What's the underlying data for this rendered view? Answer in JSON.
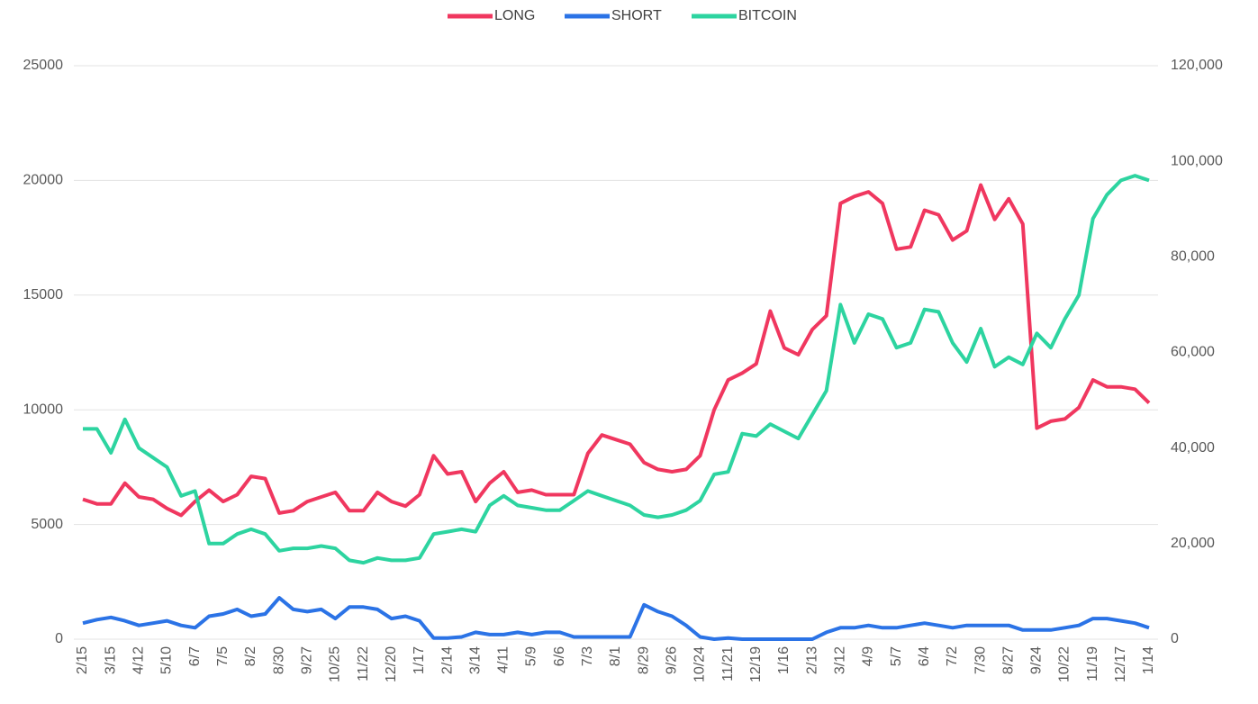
{
  "chart_data": {
    "type": "line",
    "categories": [
      "2/15",
      null,
      "3/15",
      null,
      "4/12",
      null,
      "5/10",
      null,
      "6/7",
      null,
      "7/5",
      null,
      "8/2",
      null,
      "8/30",
      null,
      "9/27",
      null,
      "10/25",
      null,
      "11/22",
      null,
      "12/20",
      null,
      "1/17",
      null,
      "2/14",
      null,
      "3/14",
      null,
      "4/11",
      null,
      "5/9",
      null,
      "6/6",
      null,
      "7/3",
      null,
      "8/1",
      null,
      "8/29",
      null,
      "9/26",
      null,
      "10/24",
      null,
      "11/21",
      null,
      "12/19",
      null,
      "1/16",
      null,
      "2/13",
      null,
      "3/12",
      null,
      "4/9",
      null,
      "5/7",
      null,
      "6/4",
      null,
      "7/2",
      null,
      "7/30",
      null,
      "8/27",
      null,
      "9/24",
      null,
      "10/22",
      null,
      "11/19",
      null,
      "12/17",
      null,
      "1/14"
    ],
    "series": [
      {
        "name": "LONG",
        "color": "#f0375f",
        "values": [
          6100,
          5900,
          5900,
          6800,
          6200,
          6100,
          5700,
          5400,
          6000,
          6500,
          6000,
          6300,
          7100,
          7000,
          5500,
          5600,
          6000,
          6200,
          6400,
          5600,
          5600,
          6400,
          6000,
          5800,
          6300,
          8000,
          7200,
          7300,
          6000,
          6800,
          7300,
          6400,
          6500,
          6300,
          6300,
          6300,
          8100,
          8900,
          8700,
          8500,
          7700,
          7400,
          7300,
          7400,
          8000,
          10000,
          11300,
          11600,
          12000,
          14300,
          12700,
          12400,
          13500,
          14100,
          19000,
          19300,
          19500,
          19000,
          17000,
          17100,
          18700,
          18500,
          17400,
          17800,
          19800,
          18300,
          19200,
          18100,
          9200,
          9500,
          9600,
          10100,
          11300,
          11000,
          11000,
          10900,
          10300
        ]
      },
      {
        "name": "SHORT",
        "color": "#2b73e6",
        "values": [
          700,
          850,
          950,
          800,
          600,
          700,
          800,
          600,
          500,
          1000,
          1100,
          1300,
          1000,
          1100,
          1800,
          1300,
          1200,
          1300,
          900,
          1400,
          1400,
          1300,
          900,
          1000,
          800,
          50,
          50,
          100,
          300,
          200,
          200,
          300,
          200,
          300,
          300,
          100,
          100,
          100,
          100,
          100,
          1500,
          1200,
          1000,
          600,
          100,
          0,
          50,
          0,
          0,
          0,
          0,
          0,
          0,
          300,
          500,
          500,
          600,
          500,
          500,
          600,
          700,
          600,
          500,
          600,
          600,
          600,
          600,
          400,
          400,
          400,
          500,
          600,
          900,
          900,
          800,
          700,
          500
        ]
      },
      {
        "name": "BITCOIN",
        "color": "#2dd4a0",
        "axis": "y2",
        "values": [
          44000,
          44000,
          39000,
          46000,
          40000,
          38000,
          36000,
          30000,
          31000,
          20000,
          20000,
          22000,
          23000,
          22000,
          18500,
          19000,
          19000,
          19500,
          19000,
          16500,
          16000,
          17000,
          16500,
          16500,
          17000,
          22000,
          22500,
          23000,
          22500,
          28000,
          30000,
          28000,
          27500,
          27000,
          27000,
          29000,
          31000,
          30000,
          29000,
          28000,
          26000,
          25500,
          26000,
          27000,
          29000,
          34500,
          35000,
          43000,
          42500,
          45000,
          43500,
          42000,
          47000,
          52000,
          70000,
          62000,
          68000,
          67000,
          61000,
          62000,
          69000,
          68500,
          62000,
          58000,
          65000,
          57000,
          59000,
          57500,
          64000,
          61000,
          67000,
          72000,
          88000,
          93000,
          96000,
          97000,
          96000
        ]
      }
    ],
    "ylim": [
      0,
      25000
    ],
    "yticks": [
      0,
      5000,
      10000,
      15000,
      20000,
      25000
    ],
    "y2lim": [
      0,
      120000
    ],
    "y2ticks": [
      0,
      {
        "value": 20000,
        "label": "20,000"
      },
      {
        "value": 40000,
        "label": "40,000"
      },
      {
        "value": 60000,
        "label": "60,000"
      },
      {
        "value": 80000,
        "label": "80,000"
      },
      {
        "value": 100000,
        "label": "100,000"
      },
      {
        "value": 120000,
        "label": "120,000"
      }
    ],
    "grid": true,
    "legend": "top"
  }
}
